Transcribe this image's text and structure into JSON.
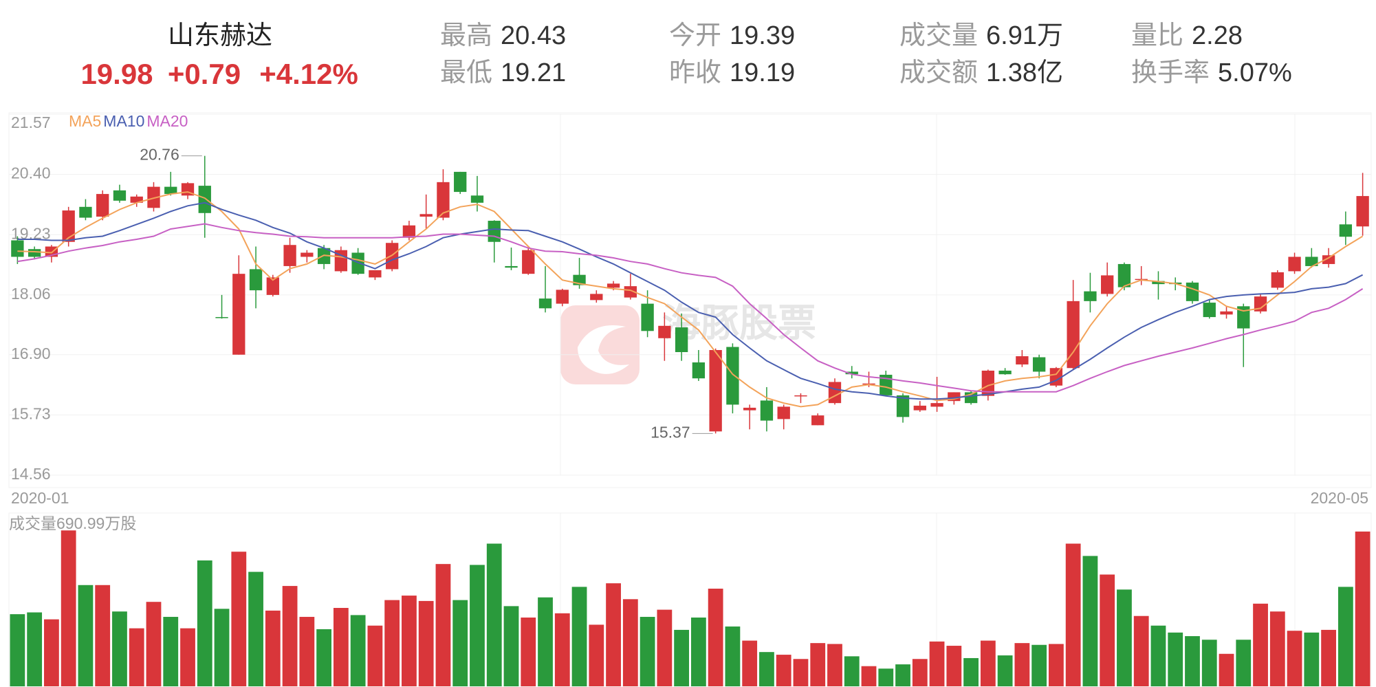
{
  "quote": {
    "name": "山东赫达",
    "price": "19.98",
    "change": "+0.79",
    "change_pct": "+4.12%",
    "stats": [
      {
        "label": "最高",
        "value": "20.43"
      },
      {
        "label": "最低",
        "value": "19.21"
      },
      {
        "label": "今开",
        "value": "19.39"
      },
      {
        "label": "昨收",
        "value": "19.19"
      },
      {
        "label": "成交量",
        "value": "6.91万"
      },
      {
        "label": "成交额",
        "value": "1.38亿"
      },
      {
        "label": "量比",
        "value": "2.28"
      },
      {
        "label": "换手率",
        "value": "5.07%"
      }
    ]
  },
  "watermark": {
    "title": "海豚股票"
  },
  "chart_data": [
    {
      "type": "candlestick",
      "categories": [
        "2020-01",
        null,
        null,
        null,
        null,
        null,
        null,
        null,
        null,
        null,
        null,
        null,
        null,
        null,
        null,
        null,
        null,
        null,
        null,
        null,
        null,
        null,
        null,
        null,
        null,
        null,
        null,
        null,
        null,
        null,
        null,
        null,
        null,
        null,
        null,
        null,
        null,
        null,
        null,
        null,
        null,
        null,
        null,
        null,
        null,
        null,
        null,
        null,
        null,
        null,
        null,
        null,
        null,
        null,
        null,
        null,
        null,
        null,
        null,
        null,
        null,
        null,
        null,
        null,
        null,
        null,
        null,
        null,
        null,
        null,
        null,
        null,
        null,
        null,
        null,
        null,
        null,
        null,
        null,
        "2020-05"
      ],
      "open": [
        19.12,
        18.95,
        18.8,
        19.09,
        19.77,
        19.58,
        20.09,
        19.85,
        19.75,
        20.16,
        19.99,
        20.18,
        17.63,
        16.9,
        18.56,
        18.06,
        18.62,
        18.8,
        18.97,
        18.52,
        18.88,
        18.4,
        18.56,
        19.17,
        19.58,
        19.56,
        20.45,
        19.99,
        19.5,
        18.62,
        18.47,
        17.99,
        17.89,
        18.45,
        17.96,
        18.2,
        18.01,
        17.89,
        17.22,
        17.43,
        16.75,
        15.41,
        17.05,
        15.82,
        16.01,
        15.65,
        16.1,
        15.53,
        15.96,
        16.57,
        16.32,
        16.51,
        16.11,
        15.82,
        15.89,
        16.0,
        16.17,
        16.1,
        16.59,
        16.71,
        16.85,
        16.3,
        16.64,
        18.13,
        18.08,
        18.66,
        18.35,
        18.33,
        18.3,
        18.3,
        17.91,
        17.68,
        17.84,
        17.74,
        18.2,
        18.52,
        18.8,
        18.66,
        19.43,
        19.39
      ],
      "high": [
        19.2,
        19.0,
        19.03,
        19.77,
        19.92,
        20.09,
        20.2,
        20.01,
        20.25,
        20.45,
        20.25,
        20.76,
        18.06,
        18.83,
        19.0,
        18.45,
        19.17,
        18.93,
        19.03,
        19.0,
        18.97,
        18.54,
        19.12,
        19.5,
        20.01,
        20.5,
        20.45,
        20.37,
        19.51,
        18.98,
        18.97,
        18.62,
        18.18,
        18.78,
        18.15,
        18.33,
        18.47,
        18.15,
        17.72,
        17.7,
        16.99,
        17.02,
        17.12,
        15.93,
        16.27,
        15.93,
        16.15,
        15.76,
        16.44,
        16.68,
        16.57,
        16.59,
        16.15,
        16.0,
        16.47,
        16.17,
        16.2,
        16.61,
        16.64,
        16.99,
        16.9,
        16.66,
        18.35,
        18.49,
        18.69,
        18.69,
        18.62,
        18.52,
        18.4,
        18.33,
        17.97,
        17.84,
        17.89,
        18.08,
        18.54,
        18.88,
        18.97,
        18.97,
        19.68,
        20.43
      ],
      "low": [
        18.66,
        18.75,
        18.69,
        19.0,
        19.51,
        19.51,
        19.85,
        19.77,
        19.68,
        19.99,
        19.92,
        19.17,
        17.6,
        16.9,
        17.8,
        18.03,
        18.49,
        18.69,
        18.56,
        18.49,
        18.45,
        18.35,
        18.52,
        19.12,
        19.34,
        19.51,
        20.02,
        19.68,
        18.69,
        18.54,
        18.45,
        17.72,
        17.84,
        18.18,
        17.91,
        18.15,
        17.97,
        17.24,
        16.78,
        16.78,
        16.39,
        15.37,
        15.76,
        15.45,
        15.41,
        15.45,
        15.96,
        15.53,
        15.93,
        16.44,
        16.27,
        16.1,
        15.58,
        15.79,
        15.79,
        15.93,
        15.93,
        16.01,
        16.51,
        16.66,
        16.44,
        16.27,
        16.61,
        17.72,
        18.03,
        18.15,
        18.25,
        17.97,
        18.15,
        17.89,
        17.6,
        17.6,
        16.66,
        17.7,
        18.16,
        18.47,
        18.59,
        18.59,
        19.03,
        19.21
      ],
      "close": [
        18.8,
        18.8,
        19.0,
        19.7,
        19.56,
        20.02,
        19.89,
        19.97,
        20.16,
        20.02,
        20.23,
        19.65,
        17.62,
        18.47,
        18.15,
        18.4,
        19.03,
        18.88,
        18.66,
        18.93,
        18.47,
        18.54,
        19.07,
        19.41,
        19.63,
        20.25,
        20.06,
        19.85,
        19.09,
        18.59,
        18.93,
        17.8,
        18.16,
        18.25,
        18.08,
        18.28,
        18.23,
        17.36,
        17.46,
        16.95,
        16.44,
        16.99,
        15.93,
        15.87,
        15.62,
        15.89,
        16.11,
        15.72,
        16.37,
        16.52,
        16.34,
        16.11,
        15.69,
        15.91,
        15.96,
        16.17,
        15.96,
        16.59,
        16.52,
        16.87,
        16.57,
        16.64,
        17.94,
        17.94,
        18.44,
        18.21,
        18.37,
        18.27,
        18.27,
        17.94,
        17.63,
        17.74,
        17.41,
        18.03,
        18.5,
        18.8,
        18.62,
        18.83,
        19.19,
        19.98
      ],
      "up_color": "#d9363a",
      "down_color": "#2a9a3c",
      "ma": [
        {
          "name": "MA5",
          "color": "#f3a35a",
          "values": [
            18.91,
            18.9,
            18.88,
            19.17,
            19.37,
            19.55,
            19.72,
            19.85,
            19.94,
            20.02,
            20.06,
            19.94,
            19.68,
            19.34,
            18.66,
            18.35,
            18.57,
            18.66,
            18.83,
            18.8,
            18.74,
            18.66,
            18.83,
            19.09,
            19.34,
            19.65,
            19.77,
            19.82,
            19.68,
            19.34,
            19.0,
            18.66,
            18.35,
            18.28,
            18.23,
            18.18,
            18.15,
            18.01,
            17.89,
            17.63,
            17.38,
            16.95,
            16.52,
            16.27,
            16.06,
            15.96,
            15.89,
            15.93,
            16.1,
            16.27,
            16.32,
            16.27,
            16.18,
            16.1,
            16.01,
            16.04,
            16.13,
            16.3,
            16.39,
            16.44,
            16.47,
            16.52,
            16.95,
            17.46,
            17.89,
            18.23,
            18.35,
            18.32,
            18.28,
            18.18,
            18.06,
            17.84,
            17.75,
            17.8,
            18.06,
            18.32,
            18.61,
            18.78,
            19.0,
            19.2
          ]
        },
        {
          "name": "MA10",
          "color": "#4a5fb0",
          "values": [
            19.14,
            19.14,
            19.12,
            19.12,
            19.17,
            19.2,
            19.31,
            19.43,
            19.55,
            19.68,
            19.79,
            19.85,
            19.72,
            19.61,
            19.51,
            19.37,
            19.26,
            19.09,
            18.97,
            18.83,
            18.69,
            18.57,
            18.74,
            18.86,
            19.0,
            19.17,
            19.24,
            19.29,
            19.34,
            19.32,
            19.31,
            19.2,
            19.09,
            18.95,
            18.8,
            18.66,
            18.49,
            18.32,
            18.15,
            17.92,
            17.72,
            17.63,
            17.29,
            17.03,
            16.78,
            16.61,
            16.44,
            16.34,
            16.23,
            16.18,
            16.15,
            16.1,
            16.06,
            16.04,
            16.04,
            16.06,
            16.1,
            16.13,
            16.18,
            16.23,
            16.27,
            16.4,
            16.61,
            16.81,
            17.03,
            17.24,
            17.43,
            17.58,
            17.72,
            17.84,
            17.97,
            18.03,
            18.06,
            18.08,
            18.09,
            18.11,
            18.18,
            18.21,
            18.28,
            18.45
          ]
        },
        {
          "name": "MA20",
          "color": "#c760c4",
          "values": [
            18.71,
            18.76,
            18.83,
            18.91,
            18.97,
            19.02,
            19.09,
            19.14,
            19.2,
            19.34,
            19.39,
            19.44,
            19.37,
            19.31,
            19.27,
            19.24,
            19.2,
            19.19,
            19.17,
            19.17,
            19.17,
            19.17,
            19.17,
            19.19,
            19.2,
            19.24,
            19.24,
            19.22,
            19.2,
            19.09,
            18.97,
            18.91,
            18.9,
            18.86,
            18.83,
            18.78,
            18.71,
            18.66,
            18.57,
            18.49,
            18.44,
            18.4,
            18.23,
            17.89,
            17.6,
            17.29,
            17.03,
            16.78,
            16.64,
            16.52,
            16.47,
            16.44,
            16.39,
            16.35,
            16.3,
            16.25,
            16.2,
            16.18,
            16.18,
            16.18,
            16.18,
            16.18,
            16.3,
            16.44,
            16.57,
            16.69,
            16.78,
            16.87,
            16.95,
            17.03,
            17.12,
            17.21,
            17.29,
            17.38,
            17.46,
            17.55,
            17.72,
            17.8,
            17.97,
            18.18
          ]
        }
      ],
      "ylim": [
        14.56,
        21.57
      ],
      "yticks": [
        14.56,
        15.73,
        {
          "value": 16.9,
          "label": "16.90"
        },
        18.06,
        19.23,
        {
          "value": 20.4,
          "label": "20.40"
        },
        21.57
      ],
      "grid": true,
      "high_label": 20.76,
      "low_label": 15.37
    },
    {
      "type": "bar",
      "title": "成交量690.99万股",
      "values": [
        322,
        330,
        299,
        696,
        452,
        452,
        334,
        259,
        377,
        310,
        259,
        562,
        346,
        601,
        511,
        338,
        448,
        310,
        255,
        350,
        318,
        271,
        385,
        405,
        381,
        546,
        385,
        542,
        637,
        358,
        307,
        397,
        326,
        444,
        275,
        460,
        389,
        310,
        342,
        252,
        307,
        436,
        267,
        204,
        153,
        141,
        122,
        193,
        189,
        134,
        90,
        79,
        98,
        122,
        200,
        181,
        126,
        204,
        138,
        193,
        185,
        189,
        637,
        582,
        499,
        432,
        314,
        271,
        240,
        224,
        208,
        145,
        208,
        369,
        334,
        248,
        240,
        252,
        444,
        690.99
      ],
      "ylim": [
        0,
        700
      ]
    }
  ]
}
